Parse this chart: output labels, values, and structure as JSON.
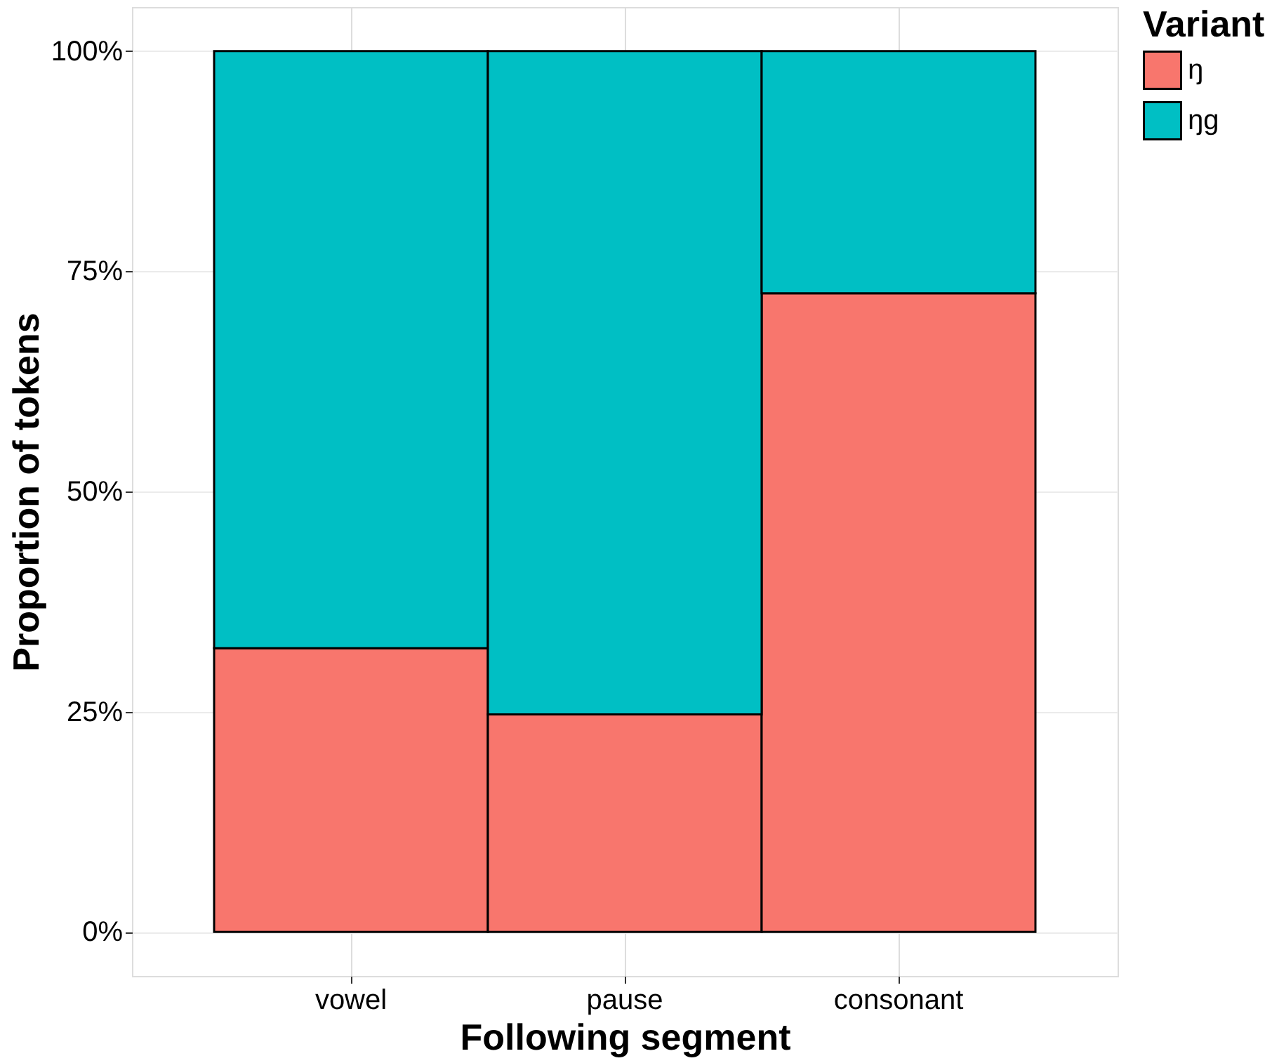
{
  "chart_data": {
    "type": "bar",
    "stacked": true,
    "xlabel": "Following segment",
    "ylabel": "Proportion of tokens",
    "legend_title": "Variant",
    "legend": "right",
    "categories": [
      "vowel",
      "pause",
      "consonant"
    ],
    "series": [
      {
        "name": "ŋ",
        "color": "#f8766d",
        "values": [
          32.2,
          24.7,
          72.5
        ]
      },
      {
        "name": "ŋg",
        "color": "#00bfc4",
        "values": [
          67.8,
          75.3,
          27.5
        ]
      }
    ],
    "ylim": [
      -5,
      105
    ],
    "yticks": [
      {
        "value": 0,
        "label": "0%"
      },
      {
        "value": 25,
        "label": "25%"
      },
      {
        "value": 50,
        "label": "50%"
      },
      {
        "value": 75,
        "label": "75%"
      },
      {
        "value": 100,
        "label": "100%"
      }
    ],
    "grid": true
  }
}
